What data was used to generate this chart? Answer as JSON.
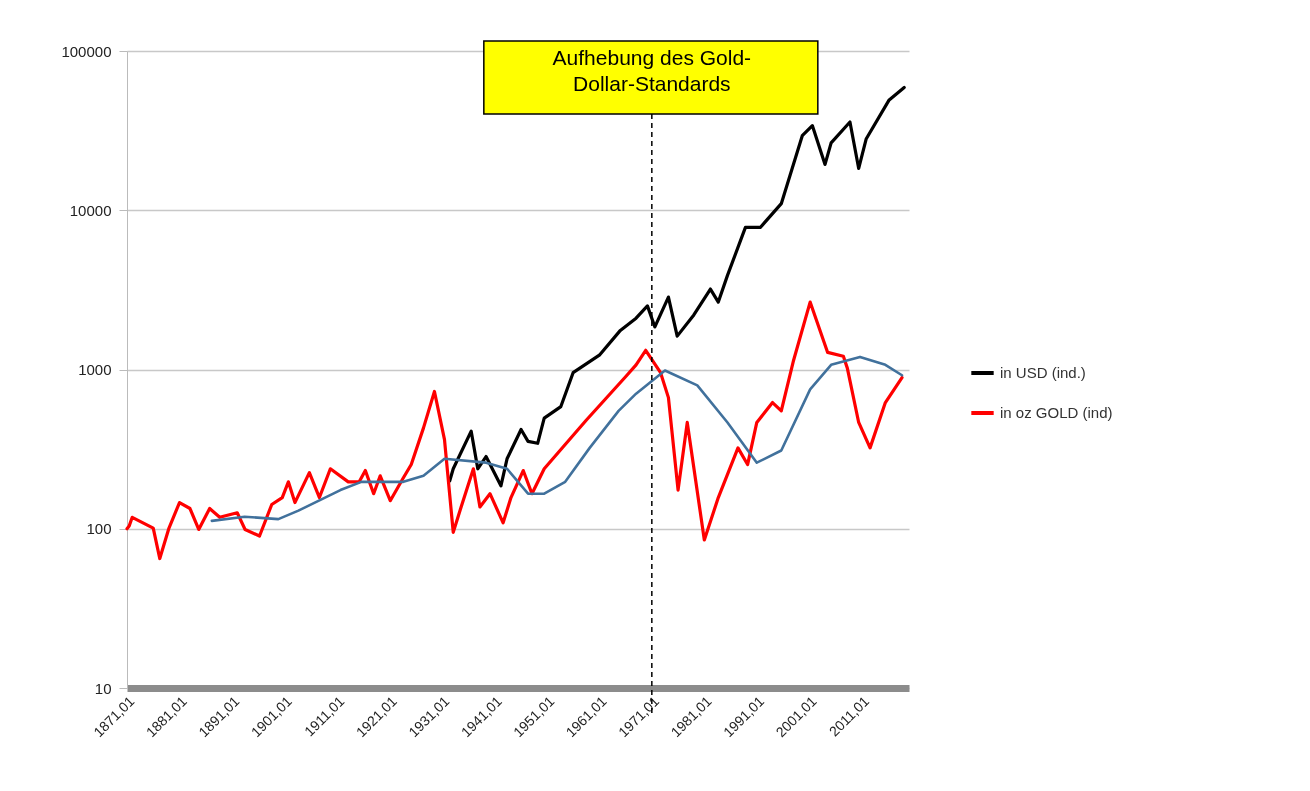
{
  "chart_data": {
    "type": "line",
    "log": "y",
    "grid": "y",
    "legend": "right",
    "xlim": [
      "1871-01",
      "2020-01"
    ],
    "xticks": [
      {
        "value": "1871-01",
        "label": "1871,01"
      },
      {
        "value": "1881-01",
        "label": "1881,01"
      },
      {
        "value": "1891-01",
        "label": "1891,01"
      },
      {
        "value": "1901-01",
        "label": "1901,01"
      },
      {
        "value": "1911-01",
        "label": "1911,01"
      },
      {
        "value": "1921-01",
        "label": "1921,01"
      },
      {
        "value": "1931-01",
        "label": "1931,01"
      },
      {
        "value": "1941-01",
        "label": "1941,01"
      },
      {
        "value": "1951-01",
        "label": "1951,01"
      },
      {
        "value": "1961-01",
        "label": "1961,01"
      },
      {
        "value": "1971-01",
        "label": "1971,01"
      },
      {
        "value": "1981-01",
        "label": "1981,01"
      },
      {
        "value": "1991-01",
        "label": "1991,01"
      },
      {
        "value": "2001-01",
        "label": "2001,01"
      },
      {
        "value": "2011-01",
        "label": "2011,01"
      }
    ],
    "ylim": [
      10,
      100000
    ],
    "yticks": [
      10,
      100,
      1000,
      10000,
      100000
    ],
    "ref_lines": [
      {
        "axis": "x",
        "value": "1971-01",
        "label": "Aufhebung des Gold-\nDollar-Standards",
        "color": "#000000",
        "line_style": "dashed"
      }
    ],
    "series": [
      {
        "name": "in USD (ind.)",
        "color": "#000000",
        "x": [
          "1932-07",
          "1933-03",
          "1936-08",
          "1937-11",
          "1939-06",
          "1942-04",
          "1943-06",
          "1946-02",
          "1947-06",
          "1949-04",
          "1950-07",
          "1953-09",
          "1956-01",
          "1961-01",
          "1965-01",
          "1968-01",
          "1970-03",
          "1971-08",
          "1974-03",
          "1975-11",
          "1979-01",
          "1982-03",
          "1983-09",
          "1985-06",
          "1988-11",
          "1991-09",
          "1995-09",
          "1999-09",
          "2001-08",
          "2004-01",
          "2005-03",
          "2008-10",
          "2010-06",
          "2011-11",
          "2016-03",
          "2019-02"
        ],
        "values": [
          200,
          238,
          410,
          238,
          284,
          186,
          275,
          420,
          354,
          344,
          495,
          585,
          955,
          1230,
          1760,
          2100,
          2510,
          1850,
          2850,
          1620,
          2200,
          3200,
          2650,
          3900,
          7800,
          7800,
          11000,
          29400,
          34000,
          19400,
          26500,
          35800,
          18300,
          28000,
          49000,
          59000
        ]
      },
      {
        "name": "in oz GOLD (ind)",
        "color": "#ff0000",
        "x": [
          "1871-01",
          "1871-06",
          "1872-01",
          "1876-01",
          "1877-04",
          "1879-01",
          "1881-01",
          "1883-01",
          "1884-09",
          "1886-10",
          "1888-09",
          "1892-01",
          "1893-07",
          "1896-04",
          "1898-08",
          "1900-08",
          "1901-10",
          "1903-01",
          "1905-10",
          "1907-09",
          "1909-10",
          "1913-03",
          "1915-04",
          "1916-06",
          "1918-01",
          "1919-04",
          "1921-03",
          "1923-09",
          "1925-03",
          "1927-07",
          "1929-08",
          "1931-07",
          "1933-03",
          "1934-09",
          "1937-01",
          "1938-04",
          "1940-03",
          "1942-09",
          "1944-03",
          "1946-07",
          "1948-03",
          "1950-07",
          "1958-07",
          "1966-01",
          "1968-01",
          "1969-11",
          "1972-09",
          "1974-03",
          "1976-01",
          "1977-10",
          "1981-01",
          "1983-09",
          "1987-06",
          "1989-04",
          "1991-01",
          "1994-01",
          "1995-09",
          "1998-01",
          "2001-03",
          "2004-07",
          "2007-07",
          "2008-04",
          "2010-06",
          "2012-08",
          "2015-07",
          "2018-09"
        ],
        "values": [
          100,
          104,
          118,
          101,
          65,
          101,
          146,
          134,
          99,
          134,
          118,
          126,
          99,
          90,
          142,
          157,
          197,
          146,
          225,
          157,
          238,
          197,
          197,
          232,
          166,
          215,
          150,
          209,
          253,
          430,
          728,
          363,
          95,
          137,
          238,
          137,
          166,
          109,
          157,
          232,
          166,
          238,
          480,
          900,
          1070,
          1320,
          955,
          666,
          175,
          465,
          85,
          157,
          322,
          253,
          465,
          620,
          550,
          1140,
          2650,
          1280,
          1210,
          1020,
          465,
          322,
          620,
          890
        ]
      },
      {
        "color": "#41719c",
        "x": [
          "1887-03",
          "1893-06",
          "1899-11",
          "1903-09",
          "1911-09",
          "1915-09",
          "1923-09",
          "1927-07",
          "1931-07",
          "1939-06",
          "1943-06",
          "1947-06",
          "1950-07",
          "1954-07",
          "1959-03",
          "1964-09",
          "1968-01",
          "1973-07",
          "1979-09",
          "1985-06",
          "1991-01",
          "1995-09",
          "2001-03",
          "2005-03",
          "2010-09",
          "2015-07",
          "2018-09"
        ],
        "values": [
          112,
          119,
          115,
          130,
          175,
          197,
          197,
          215,
          275,
          260,
          238,
          166,
          166,
          197,
          322,
          550,
          705,
          985,
          795,
          465,
          260,
          310,
          750,
          1070,
          1200,
          1070,
          920
        ]
      }
    ]
  }
}
